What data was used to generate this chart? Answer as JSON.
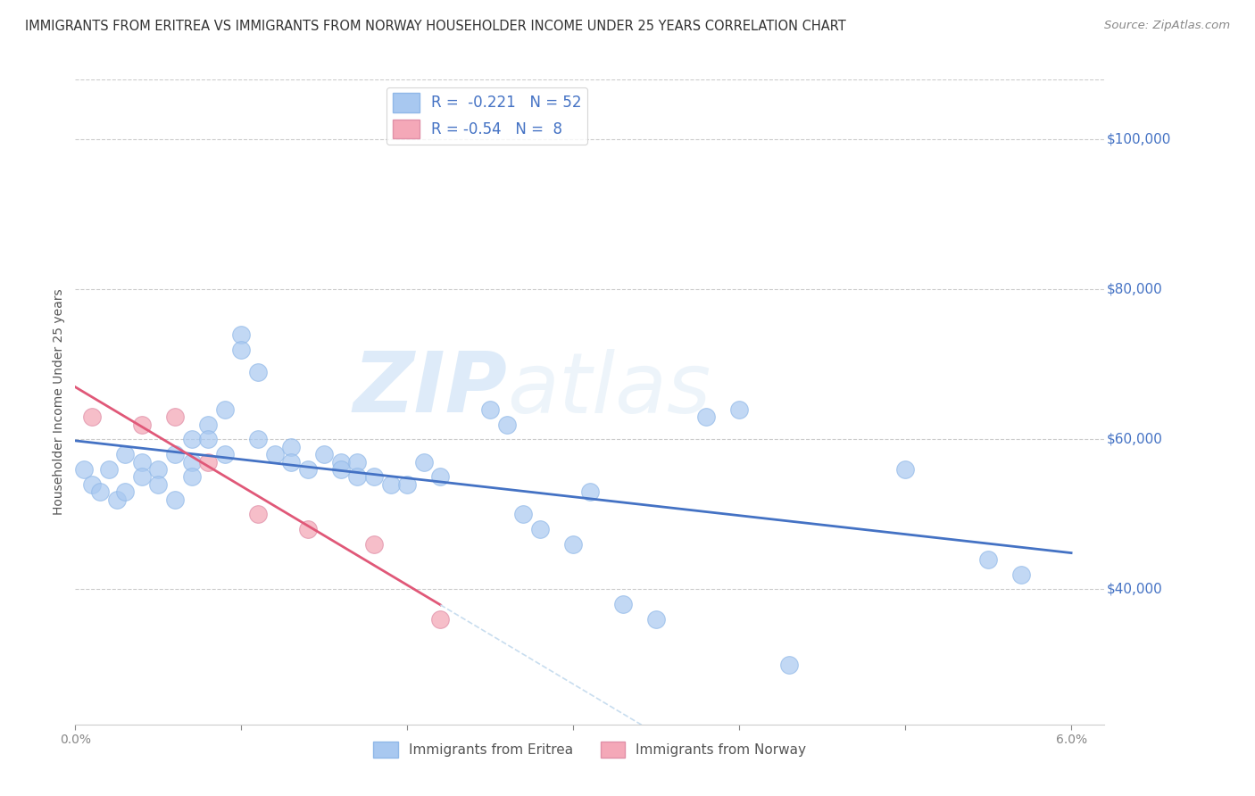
{
  "title": "IMMIGRANTS FROM ERITREA VS IMMIGRANTS FROM NORWAY HOUSEHOLDER INCOME UNDER 25 YEARS CORRELATION CHART",
  "source": "Source: ZipAtlas.com",
  "ylabel": "Householder Income Under 25 years",
  "xlim": [
    0.0,
    0.062
  ],
  "ylim": [
    22000,
    108000
  ],
  "xticks": [
    0.0,
    0.01,
    0.02,
    0.03,
    0.04,
    0.05,
    0.06
  ],
  "xticklabels": [
    "0.0%",
    "",
    "",
    "",
    "",
    "",
    "6.0%"
  ],
  "yticks": [
    40000,
    60000,
    80000,
    100000
  ],
  "yticklabels": [
    "$40,000",
    "$60,000",
    "$80,000",
    "$100,000"
  ],
  "legend_labels": [
    "Immigrants from Eritrea",
    "Immigrants from Norway"
  ],
  "R_eritrea": -0.221,
  "N_eritrea": 52,
  "R_norway": -0.54,
  "N_norway": 8,
  "eritrea_color": "#a8c8f0",
  "norway_color": "#f4a8b8",
  "eritrea_line_color": "#4472c4",
  "norway_line_color": "#e05878",
  "norway_dashed_color": "#c8ddef",
  "watermark_zip": "ZIP",
  "watermark_atlas": "atlas",
  "eritrea_x": [
    0.0005,
    0.001,
    0.0015,
    0.002,
    0.0025,
    0.003,
    0.003,
    0.004,
    0.004,
    0.005,
    0.005,
    0.006,
    0.006,
    0.007,
    0.007,
    0.007,
    0.008,
    0.008,
    0.009,
    0.009,
    0.01,
    0.01,
    0.011,
    0.011,
    0.012,
    0.013,
    0.013,
    0.014,
    0.015,
    0.016,
    0.016,
    0.017,
    0.017,
    0.018,
    0.019,
    0.02,
    0.021,
    0.022,
    0.025,
    0.026,
    0.027,
    0.028,
    0.03,
    0.031,
    0.033,
    0.035,
    0.038,
    0.04,
    0.043,
    0.05,
    0.055,
    0.057
  ],
  "eritrea_y": [
    56000,
    54000,
    53000,
    56000,
    52000,
    58000,
    53000,
    57000,
    55000,
    56000,
    54000,
    58000,
    52000,
    60000,
    57000,
    55000,
    62000,
    60000,
    64000,
    58000,
    74000,
    72000,
    69000,
    60000,
    58000,
    59000,
    57000,
    56000,
    58000,
    57000,
    56000,
    57000,
    55000,
    55000,
    54000,
    54000,
    57000,
    55000,
    64000,
    62000,
    50000,
    48000,
    46000,
    53000,
    38000,
    36000,
    63000,
    64000,
    30000,
    56000,
    44000,
    42000
  ],
  "norway_x": [
    0.001,
    0.004,
    0.006,
    0.008,
    0.011,
    0.014,
    0.018,
    0.022
  ],
  "norway_y": [
    63000,
    62000,
    63000,
    57000,
    50000,
    48000,
    46000,
    36000
  ]
}
